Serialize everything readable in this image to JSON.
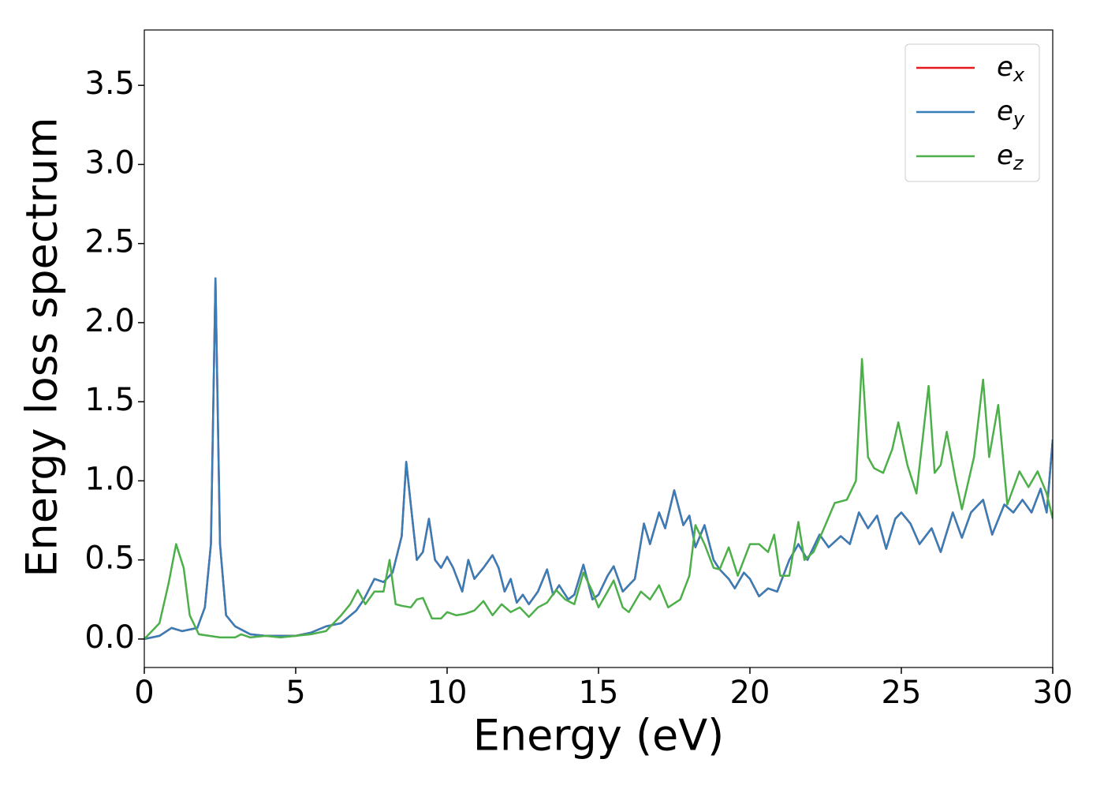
{
  "chart_data": {
    "type": "line",
    "xlabel": "Energy (eV)",
    "ylabel": "Energy loss spectrum",
    "xlim": [
      0,
      30
    ],
    "ylim": [
      -0.18,
      3.85
    ],
    "xticks": [
      0,
      5,
      10,
      15,
      20,
      25,
      30
    ],
    "yticks": [
      {
        "value": 0,
        "label": "0.0"
      },
      {
        "value": 0.5,
        "label": "0.5"
      },
      {
        "value": 1,
        "label": "1.0"
      },
      {
        "value": 1.5,
        "label": "1.5"
      },
      {
        "value": 2,
        "label": "2.0"
      },
      {
        "value": 2.5,
        "label": "2.5"
      },
      {
        "value": 3,
        "label": "3.0"
      },
      {
        "value": 3.5,
        "label": "3.5"
      }
    ],
    "legend": "upper right",
    "series": [
      {
        "name": "ex",
        "color": "#e41a1c",
        "x": [
          0,
          0.5,
          0.9,
          1.25,
          1.5,
          1.75,
          2.0,
          2.2,
          2.35,
          2.5,
          2.7,
          3.0,
          3.5,
          4.0,
          4.5,
          5.0,
          5.5,
          6.0,
          6.5,
          7.0,
          7.25,
          7.6,
          7.9,
          8.2,
          8.5,
          8.65,
          8.8,
          9.0,
          9.2,
          9.4,
          9.6,
          9.8,
          10.0,
          10.2,
          10.5,
          10.7,
          10.9,
          11.2,
          11.5,
          11.7,
          11.9,
          12.1,
          12.3,
          12.5,
          12.7,
          13.0,
          13.3,
          13.5,
          13.7,
          14.0,
          14.2,
          14.5,
          14.8,
          15.0,
          15.3,
          15.5,
          15.8,
          16.2,
          16.5,
          16.7,
          17.0,
          17.2,
          17.5,
          17.8,
          18.0,
          18.2,
          18.5,
          18.8,
          19.0,
          19.3,
          19.5,
          19.8,
          20.0,
          20.3,
          20.6,
          20.9,
          21.3,
          21.6,
          21.9,
          22.3,
          22.6,
          23.0,
          23.3,
          23.6,
          23.9,
          24.2,
          24.5,
          24.8,
          25.0,
          25.3,
          25.6,
          26.0,
          26.3,
          26.7,
          27.0,
          27.3,
          27.7,
          28.0,
          28.4,
          28.7,
          29.0,
          29.3,
          29.6,
          29.8,
          30.0
        ],
        "values": [
          0,
          0.02,
          0.07,
          0.05,
          0.06,
          0.07,
          0.2,
          0.6,
          2.28,
          0.6,
          0.15,
          0.08,
          0.03,
          0.02,
          0.02,
          0.02,
          0.04,
          0.08,
          0.1,
          0.18,
          0.25,
          0.38,
          0.36,
          0.42,
          0.65,
          1.12,
          0.85,
          0.5,
          0.55,
          0.76,
          0.5,
          0.45,
          0.52,
          0.45,
          0.3,
          0.5,
          0.38,
          0.45,
          0.53,
          0.45,
          0.3,
          0.38,
          0.23,
          0.28,
          0.22,
          0.3,
          0.44,
          0.28,
          0.34,
          0.25,
          0.28,
          0.47,
          0.25,
          0.28,
          0.4,
          0.46,
          0.3,
          0.38,
          0.73,
          0.6,
          0.8,
          0.7,
          0.94,
          0.72,
          0.78,
          0.58,
          0.72,
          0.5,
          0.44,
          0.38,
          0.32,
          0.42,
          0.38,
          0.27,
          0.32,
          0.3,
          0.5,
          0.6,
          0.5,
          0.66,
          0.58,
          0.65,
          0.6,
          0.8,
          0.7,
          0.78,
          0.57,
          0.76,
          0.8,
          0.73,
          0.6,
          0.7,
          0.55,
          0.8,
          0.64,
          0.8,
          0.88,
          0.66,
          0.85,
          0.8,
          0.88,
          0.8,
          0.95,
          0.8,
          1.26
        ]
      },
      {
        "name": "ey",
        "color": "#377eb8",
        "x": [
          0,
          0.5,
          0.9,
          1.25,
          1.5,
          1.75,
          2.0,
          2.2,
          2.35,
          2.5,
          2.7,
          3.0,
          3.5,
          4.0,
          4.5,
          5.0,
          5.5,
          6.0,
          6.5,
          7.0,
          7.25,
          7.6,
          7.9,
          8.2,
          8.5,
          8.65,
          8.8,
          9.0,
          9.2,
          9.4,
          9.6,
          9.8,
          10.0,
          10.2,
          10.5,
          10.7,
          10.9,
          11.2,
          11.5,
          11.7,
          11.9,
          12.1,
          12.3,
          12.5,
          12.7,
          13.0,
          13.3,
          13.5,
          13.7,
          14.0,
          14.2,
          14.5,
          14.8,
          15.0,
          15.3,
          15.5,
          15.8,
          16.2,
          16.5,
          16.7,
          17.0,
          17.2,
          17.5,
          17.8,
          18.0,
          18.2,
          18.5,
          18.8,
          19.0,
          19.3,
          19.5,
          19.8,
          20.0,
          20.3,
          20.6,
          20.9,
          21.3,
          21.6,
          21.9,
          22.3,
          22.6,
          23.0,
          23.3,
          23.6,
          23.9,
          24.2,
          24.5,
          24.8,
          25.0,
          25.3,
          25.6,
          26.0,
          26.3,
          26.7,
          27.0,
          27.3,
          27.7,
          28.0,
          28.4,
          28.7,
          29.0,
          29.3,
          29.6,
          29.8,
          30.0
        ],
        "values": [
          0,
          0.02,
          0.07,
          0.05,
          0.06,
          0.07,
          0.2,
          0.6,
          2.28,
          0.6,
          0.15,
          0.08,
          0.03,
          0.02,
          0.02,
          0.02,
          0.04,
          0.08,
          0.1,
          0.18,
          0.25,
          0.38,
          0.36,
          0.42,
          0.65,
          1.12,
          0.85,
          0.5,
          0.55,
          0.76,
          0.5,
          0.45,
          0.52,
          0.45,
          0.3,
          0.5,
          0.38,
          0.45,
          0.53,
          0.45,
          0.3,
          0.38,
          0.23,
          0.28,
          0.22,
          0.3,
          0.44,
          0.28,
          0.34,
          0.25,
          0.28,
          0.47,
          0.25,
          0.28,
          0.4,
          0.46,
          0.3,
          0.38,
          0.73,
          0.6,
          0.8,
          0.7,
          0.94,
          0.72,
          0.78,
          0.58,
          0.72,
          0.5,
          0.44,
          0.38,
          0.32,
          0.42,
          0.38,
          0.27,
          0.32,
          0.3,
          0.5,
          0.6,
          0.5,
          0.66,
          0.58,
          0.65,
          0.6,
          0.8,
          0.7,
          0.78,
          0.57,
          0.76,
          0.8,
          0.73,
          0.6,
          0.7,
          0.55,
          0.8,
          0.64,
          0.8,
          0.88,
          0.66,
          0.85,
          0.8,
          0.88,
          0.8,
          0.95,
          0.8,
          1.26
        ]
      },
      {
        "name": "ez",
        "color": "#4daf4a",
        "x": [
          0,
          0.5,
          0.8,
          1.05,
          1.3,
          1.5,
          1.8,
          2.5,
          3.0,
          3.2,
          3.5,
          4.0,
          4.5,
          5.0,
          5.5,
          6.0,
          6.5,
          6.8,
          7.05,
          7.3,
          7.6,
          7.9,
          8.1,
          8.3,
          8.5,
          8.8,
          9.0,
          9.2,
          9.5,
          9.8,
          10.0,
          10.3,
          10.6,
          10.9,
          11.2,
          11.5,
          11.8,
          12.1,
          12.4,
          12.7,
          13.0,
          13.3,
          13.6,
          13.9,
          14.2,
          14.5,
          14.8,
          15.0,
          15.3,
          15.5,
          15.8,
          16.0,
          16.4,
          16.7,
          17.0,
          17.3,
          17.7,
          18.0,
          18.2,
          18.5,
          18.8,
          19.0,
          19.3,
          19.6,
          20.0,
          20.3,
          20.6,
          20.8,
          21.0,
          21.3,
          21.6,
          21.8,
          22.1,
          22.4,
          22.8,
          23.2,
          23.5,
          23.7,
          23.9,
          24.1,
          24.4,
          24.7,
          24.9,
          25.2,
          25.5,
          25.9,
          26.1,
          26.3,
          26.5,
          26.8,
          27.0,
          27.4,
          27.7,
          27.9,
          28.2,
          28.5,
          28.9,
          29.2,
          29.5,
          29.8,
          30.0
        ],
        "values": [
          0,
          0.1,
          0.35,
          0.6,
          0.45,
          0.15,
          0.03,
          0.01,
          0.01,
          0.03,
          0.01,
          0.02,
          0.01,
          0.02,
          0.03,
          0.05,
          0.15,
          0.22,
          0.31,
          0.22,
          0.3,
          0.3,
          0.5,
          0.22,
          0.21,
          0.2,
          0.25,
          0.26,
          0.13,
          0.13,
          0.17,
          0.15,
          0.16,
          0.18,
          0.24,
          0.15,
          0.22,
          0.17,
          0.2,
          0.14,
          0.2,
          0.23,
          0.31,
          0.25,
          0.22,
          0.42,
          0.3,
          0.2,
          0.3,
          0.37,
          0.2,
          0.17,
          0.3,
          0.25,
          0.34,
          0.2,
          0.25,
          0.4,
          0.72,
          0.6,
          0.45,
          0.44,
          0.58,
          0.4,
          0.6,
          0.6,
          0.55,
          0.66,
          0.4,
          0.4,
          0.74,
          0.5,
          0.55,
          0.68,
          0.86,
          0.88,
          1.0,
          1.77,
          1.15,
          1.08,
          1.05,
          1.2,
          1.37,
          1.1,
          0.92,
          1.6,
          1.05,
          1.1,
          1.31,
          1.0,
          0.82,
          1.15,
          1.64,
          1.15,
          1.48,
          0.85,
          1.06,
          0.96,
          1.06,
          0.92,
          0.76
        ]
      }
    ]
  }
}
